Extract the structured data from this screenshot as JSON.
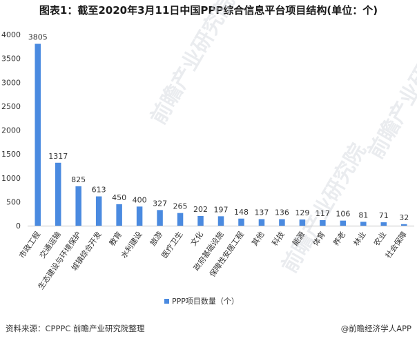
{
  "title": "图表1：截至2020年3月11日中国PPP综合信息平台项目结构(单位：个)",
  "chart_data": {
    "type": "bar",
    "categories": [
      "市政工程",
      "交通运输",
      "生态建设与环境保护",
      "城镇综合开发",
      "教育",
      "水利建设",
      "旅游",
      "医疗卫生",
      "文化",
      "政府基础设施",
      "保障性安居工程",
      "其他",
      "科技",
      "能源",
      "体育",
      "养老",
      "林业",
      "农业",
      "社会保障"
    ],
    "series": [
      {
        "name": "PPP项目数量（个）",
        "values": [
          3805,
          1317,
          825,
          613,
          450,
          400,
          327,
          265,
          202,
          197,
          148,
          137,
          136,
          129,
          117,
          106,
          81,
          71,
          32
        ]
      }
    ],
    "ylim": [
      0,
      4000
    ],
    "yticks": [
      0,
      500,
      1000,
      1500,
      2000,
      2500,
      3000,
      3500,
      4000
    ],
    "legend_position": "bottom",
    "grid": false,
    "bar_color": "#4a8ae0"
  },
  "source": "资料来源：CPPPC 前瞻产业研究院整理",
  "credit": "@前瞻经济学人APP",
  "watermark": "前瞻产业研究院"
}
